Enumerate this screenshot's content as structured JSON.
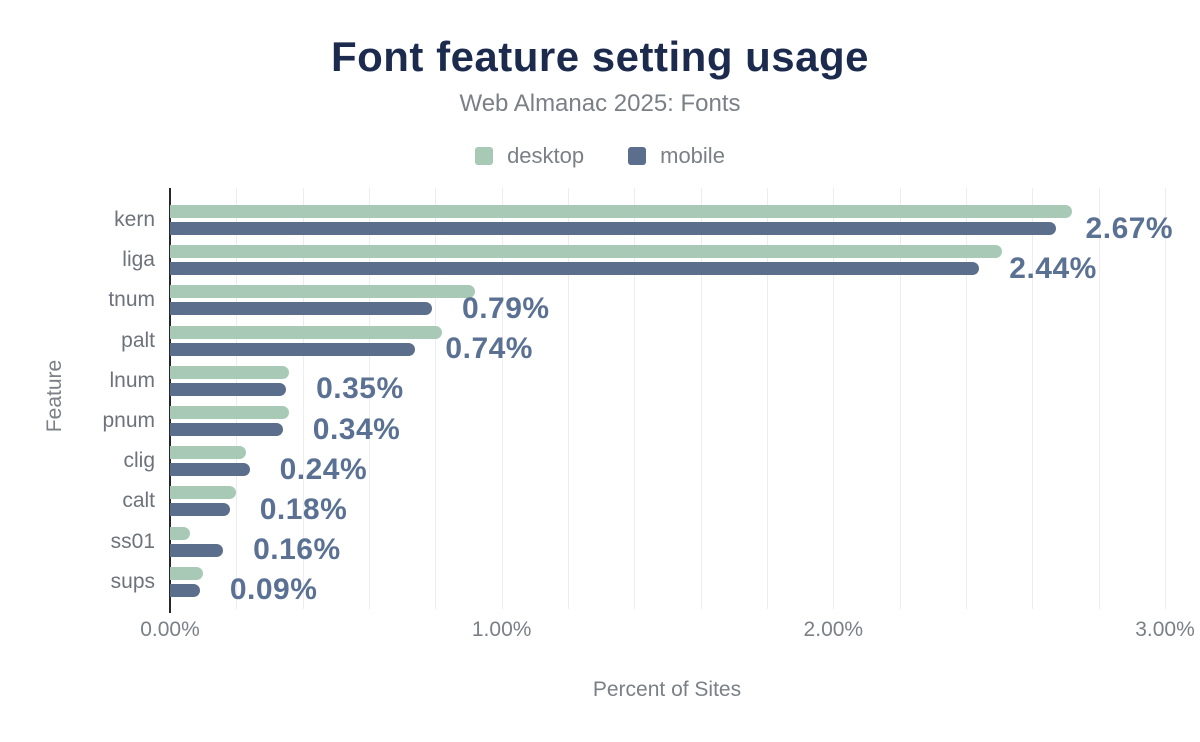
{
  "header": {
    "title": "Font feature setting usage",
    "subtitle": "Web Almanac 2025: Fonts"
  },
  "chart_data": {
    "type": "bar",
    "orientation": "horizontal",
    "title": "Font feature setting usage",
    "subtitle": "Web Almanac 2025: Fonts",
    "categories": [
      "kern",
      "liga",
      "tnum",
      "palt",
      "lnum",
      "pnum",
      "clig",
      "calt",
      "ss01",
      "sups"
    ],
    "series": [
      {
        "name": "desktop",
        "color": "#a7c9b5",
        "values": [
          2.72,
          2.51,
          0.92,
          0.82,
          0.36,
          0.36,
          0.23,
          0.2,
          0.06,
          0.1
        ]
      },
      {
        "name": "mobile",
        "color": "#5b6e8c",
        "values": [
          2.67,
          2.44,
          0.79,
          0.74,
          0.35,
          0.34,
          0.24,
          0.18,
          0.16,
          0.09
        ]
      }
    ],
    "value_labels": [
      "2.67%",
      "2.44%",
      "0.79%",
      "0.74%",
      "0.35%",
      "0.34%",
      "0.24%",
      "0.18%",
      "0.16%",
      "0.09%"
    ],
    "value_labels_refer_to": "mobile",
    "xlabel": "Percent of Sites",
    "ylabel": "Feature",
    "xlim": [
      0,
      3
    ],
    "x_ticks": [
      {
        "value": 0,
        "label": "0.00%"
      },
      {
        "value": 1,
        "label": "1.00%"
      },
      {
        "value": 2,
        "label": "2.00%"
      },
      {
        "value": 3,
        "label": "3.00%"
      }
    ],
    "grid_step": 0.2,
    "grid": true,
    "legend_position": "top"
  },
  "colors": {
    "title": "#1c2b4d",
    "muted_text": "#7b8086",
    "category_text": "#6e737b",
    "value_label": "#5a7194",
    "gridline": "#ededf0",
    "axis_line": "#26282c",
    "background": "#ffffff"
  }
}
